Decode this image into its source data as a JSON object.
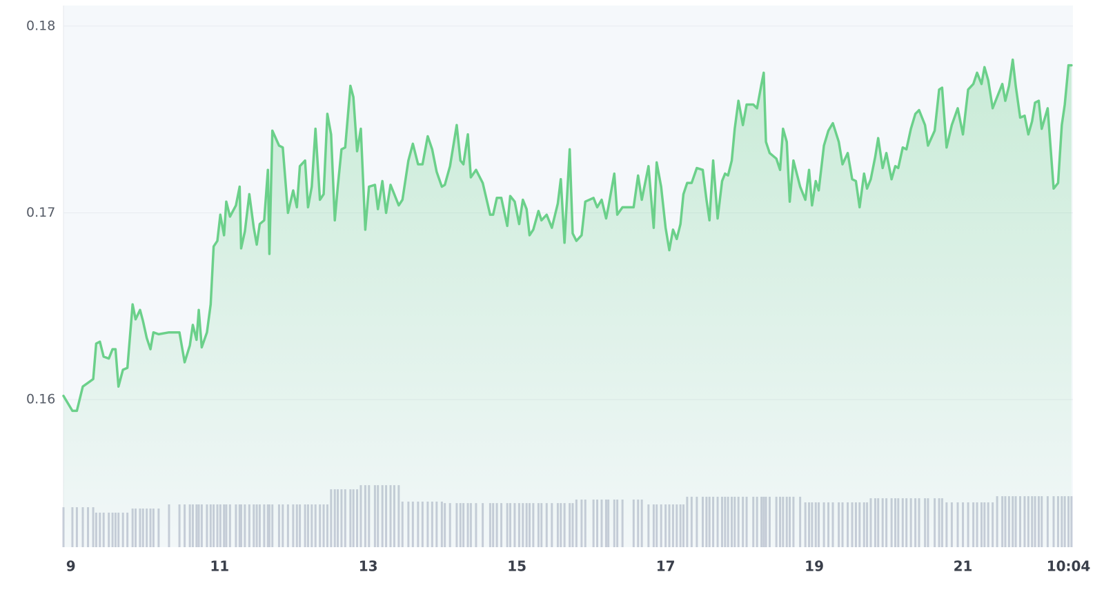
{
  "chart_data": {
    "type": "line",
    "xlim": [
      8.9,
      22.48
    ],
    "xticks": [
      9,
      11,
      13,
      15,
      17,
      19,
      21,
      {
        "value": 22.42,
        "label": "10:04"
      }
    ],
    "ylim": [
      0.1521,
      0.1811
    ],
    "yticks": [
      0.16,
      0.17,
      0.18
    ],
    "grid": true,
    "x": [
      8.9,
      9.02,
      9.08,
      9.16,
      9.23,
      9.3,
      9.34,
      9.39,
      9.44,
      9.51,
      9.56,
      9.6,
      9.64,
      9.7,
      9.76,
      9.83,
      9.87,
      9.93,
      9.97,
      10.02,
      10.07,
      10.11,
      10.18,
      10.32,
      10.46,
      10.53,
      10.6,
      10.64,
      10.69,
      10.72,
      10.76,
      10.83,
      10.88,
      10.92,
      10.97,
      11.01,
      11.06,
      11.09,
      11.14,
      11.22,
      11.27,
      11.29,
      11.34,
      11.4,
      11.46,
      11.5,
      11.54,
      11.6,
      11.65,
      11.67,
      11.71,
      11.8,
      11.85,
      11.92,
      11.99,
      12.04,
      12.08,
      12.15,
      12.19,
      12.24,
      12.29,
      12.35,
      12.4,
      12.45,
      12.5,
      12.55,
      12.59,
      12.64,
      12.69,
      12.76,
      12.8,
      12.85,
      12.9,
      12.96,
      13.01,
      13.09,
      13.13,
      13.19,
      13.24,
      13.3,
      13.35,
      13.41,
      13.46,
      13.54,
      13.6,
      13.67,
      13.73,
      13.8,
      13.86,
      13.92,
      13.99,
      14.03,
      14.1,
      14.19,
      14.24,
      14.28,
      14.34,
      14.38,
      14.45,
      14.54,
      14.64,
      14.68,
      14.73,
      14.79,
      14.87,
      14.91,
      14.97,
      15.03,
      15.08,
      15.13,
      15.17,
      15.22,
      15.29,
      15.33,
      15.4,
      15.47,
      15.55,
      15.59,
      15.64,
      15.71,
      15.75,
      15.8,
      15.87,
      15.92,
      16.03,
      16.08,
      16.14,
      16.2,
      16.23,
      16.31,
      16.35,
      16.42,
      16.57,
      16.63,
      16.68,
      16.77,
      16.84,
      16.88,
      16.94,
      17.0,
      17.05,
      17.1,
      17.15,
      17.2,
      17.24,
      17.29,
      17.35,
      17.42,
      17.5,
      17.55,
      17.59,
      17.64,
      17.7,
      17.76,
      17.8,
      17.84,
      17.89,
      17.93,
      17.98,
      18.04,
      18.09,
      18.18,
      18.23,
      18.29,
      18.32,
      18.35,
      18.4,
      18.49,
      18.54,
      18.58,
      18.63,
      18.67,
      18.72,
      18.81,
      18.88,
      18.93,
      18.97,
      19.02,
      19.06,
      19.13,
      19.19,
      19.25,
      19.33,
      19.38,
      19.45,
      19.51,
      19.56,
      19.61,
      19.67,
      19.71,
      19.76,
      19.82,
      19.86,
      19.92,
      19.97,
      20.04,
      20.09,
      20.13,
      20.19,
      20.24,
      20.3,
      20.36,
      20.41,
      20.49,
      20.53,
      20.62,
      20.68,
      20.72,
      20.78,
      20.85,
      20.93,
      21.0,
      21.07,
      21.14,
      21.19,
      21.25,
      21.29,
      21.34,
      21.4,
      21.46,
      21.53,
      21.57,
      21.62,
      21.67,
      21.71,
      21.77,
      21.83,
      21.88,
      21.93,
      21.97,
      22.02,
      22.06,
      22.14,
      22.22,
      22.28,
      22.33,
      22.37,
      22.42,
      22.46
    ],
    "series": [
      {
        "color": "#6bd08a",
        "values": [
          0.1602,
          0.1594,
          0.1594,
          0.1607,
          0.1609,
          0.1611,
          0.163,
          0.1631,
          0.1623,
          0.1622,
          0.1627,
          0.1627,
          0.1607,
          0.1616,
          0.1617,
          0.1651,
          0.1643,
          0.1648,
          0.1642,
          0.1633,
          0.1627,
          0.1636,
          0.1635,
          0.1636,
          0.1636,
          0.162,
          0.1629,
          0.164,
          0.1632,
          0.1648,
          0.1628,
          0.1636,
          0.1651,
          0.1682,
          0.1685,
          0.1699,
          0.1688,
          0.1706,
          0.1698,
          0.1704,
          0.1714,
          0.1681,
          0.169,
          0.171,
          0.1692,
          0.1683,
          0.1694,
          0.1696,
          0.1723,
          0.1678,
          0.1744,
          0.1736,
          0.1735,
          0.17,
          0.1712,
          0.1703,
          0.1725,
          0.1728,
          0.1703,
          0.1714,
          0.1745,
          0.1707,
          0.171,
          0.1753,
          0.1742,
          0.1696,
          0.1714,
          0.1734,
          0.1735,
          0.1768,
          0.1762,
          0.1733,
          0.1745,
          0.1691,
          0.1714,
          0.1715,
          0.1702,
          0.1717,
          0.17,
          0.1715,
          0.171,
          0.1704,
          0.1707,
          0.1728,
          0.1737,
          0.1726,
          0.1726,
          0.1741,
          0.1734,
          0.1722,
          0.1714,
          0.1715,
          0.1725,
          0.1747,
          0.1728,
          0.1726,
          0.1742,
          0.1719,
          0.1723,
          0.1716,
          0.1699,
          0.1699,
          0.1708,
          0.1708,
          0.1693,
          0.1709,
          0.1706,
          0.1694,
          0.1707,
          0.1702,
          0.1688,
          0.1691,
          0.1701,
          0.1696,
          0.1699,
          0.1692,
          0.1705,
          0.1718,
          0.1684,
          0.1734,
          0.1689,
          0.1685,
          0.1688,
          0.1706,
          0.1708,
          0.1703,
          0.1707,
          0.1697,
          0.1703,
          0.1721,
          0.1699,
          0.1703,
          0.1703,
          0.172,
          0.1707,
          0.1725,
          0.1692,
          0.1727,
          0.1714,
          0.1692,
          0.168,
          0.1691,
          0.1686,
          0.1694,
          0.171,
          0.1716,
          0.1716,
          0.1724,
          0.1723,
          0.1707,
          0.1696,
          0.1728,
          0.1697,
          0.1717,
          0.1721,
          0.172,
          0.1728,
          0.1745,
          0.176,
          0.1747,
          0.1758,
          0.1758,
          0.1756,
          0.1769,
          0.1775,
          0.1738,
          0.1732,
          0.1729,
          0.1723,
          0.1745,
          0.1738,
          0.1706,
          0.1728,
          0.1714,
          0.1707,
          0.1723,
          0.1704,
          0.1717,
          0.1712,
          0.1736,
          0.1744,
          0.1748,
          0.1738,
          0.1726,
          0.1732,
          0.1718,
          0.1717,
          0.1703,
          0.1721,
          0.1713,
          0.1718,
          0.173,
          0.174,
          0.1724,
          0.1732,
          0.1718,
          0.1725,
          0.1724,
          0.1735,
          0.1734,
          0.1745,
          0.1753,
          0.1755,
          0.1747,
          0.1736,
          0.1744,
          0.1766,
          0.1767,
          0.1735,
          0.1747,
          0.1756,
          0.1742,
          0.1766,
          0.1769,
          0.1775,
          0.1769,
          0.1778,
          0.1771,
          0.1756,
          0.1762,
          0.1769,
          0.176,
          0.1768,
          0.1782,
          0.1768,
          0.1751,
          0.1752,
          0.1742,
          0.1749,
          0.1759,
          0.176,
          0.1745,
          0.1756,
          0.1713,
          0.1716,
          0.1747,
          0.1758,
          0.1779,
          0.1779
        ]
      },
      {
        "type": "bar",
        "color": "#c7ccd9",
        "values": [
          0.15424,
          0.15424,
          0.15424,
          0.15424,
          0.15424,
          0.15424,
          0.15395,
          0.15395,
          0.15395,
          0.15395,
          0.15395,
          0.15395,
          0.15395,
          0.15395,
          0.15395,
          0.15417,
          0.15417,
          0.15417,
          0.15417,
          0.15417,
          0.15417,
          0.15417,
          0.15417,
          0.15439,
          0.15439,
          0.15439,
          0.15439,
          0.15439,
          0.15439,
          0.15439,
          0.15439,
          0.15439,
          0.15439,
          0.15439,
          0.15439,
          0.15439,
          0.15439,
          0.15439,
          0.15439,
          0.15439,
          0.15439,
          0.15439,
          0.15439,
          0.15439,
          0.15439,
          0.15439,
          0.15439,
          0.15439,
          0.15439,
          0.15439,
          0.15439,
          0.15439,
          0.15439,
          0.15439,
          0.15439,
          0.15439,
          0.15439,
          0.15439,
          0.15439,
          0.15439,
          0.15439,
          0.15439,
          0.15439,
          0.15439,
          0.1552,
          0.1552,
          0.1552,
          0.1552,
          0.1552,
          0.1552,
          0.1552,
          0.1552,
          0.15542,
          0.15542,
          0.15542,
          0.15542,
          0.15542,
          0.15542,
          0.15542,
          0.15542,
          0.15542,
          0.15542,
          0.15454,
          0.15454,
          0.15454,
          0.15454,
          0.15454,
          0.15454,
          0.15454,
          0.15454,
          0.15454,
          0.15446,
          0.15446,
          0.15446,
          0.15446,
          0.15446,
          0.15446,
          0.15446,
          0.15446,
          0.15446,
          0.15446,
          0.15446,
          0.15446,
          0.15446,
          0.15446,
          0.15446,
          0.15446,
          0.15446,
          0.15446,
          0.15446,
          0.15446,
          0.15446,
          0.15446,
          0.15446,
          0.15446,
          0.15446,
          0.15446,
          0.15446,
          0.15446,
          0.15446,
          0.15446,
          0.15465,
          0.15465,
          0.15465,
          0.15465,
          0.15465,
          0.15465,
          0.15465,
          0.15465,
          0.15465,
          0.15465,
          0.15465,
          0.15465,
          0.15465,
          0.15465,
          0.15439,
          0.15439,
          0.15439,
          0.15439,
          0.15439,
          0.15439,
          0.15439,
          0.15439,
          0.15439,
          0.15439,
          0.1548,
          0.1548,
          0.1548,
          0.1548,
          0.1548,
          0.1548,
          0.1548,
          0.1548,
          0.1548,
          0.1548,
          0.1548,
          0.1548,
          0.1548,
          0.1548,
          0.1548,
          0.1548,
          0.1548,
          0.1548,
          0.1548,
          0.1548,
          0.1548,
          0.1548,
          0.1548,
          0.1548,
          0.1548,
          0.1548,
          0.1548,
          0.1548,
          0.1548,
          0.1545,
          0.1545,
          0.1545,
          0.1545,
          0.1545,
          0.1545,
          0.1545,
          0.1545,
          0.1545,
          0.1545,
          0.1545,
          0.1545,
          0.1545,
          0.1545,
          0.1545,
          0.1545,
          0.15472,
          0.15472,
          0.15472,
          0.15472,
          0.15472,
          0.15472,
          0.15472,
          0.15472,
          0.15472,
          0.15472,
          0.15472,
          0.15472,
          0.15472,
          0.15472,
          0.15472,
          0.15472,
          0.15472,
          0.15472,
          0.1545,
          0.1545,
          0.1545,
          0.1545,
          0.1545,
          0.1545,
          0.1545,
          0.1545,
          0.1545,
          0.1545,
          0.1545,
          0.15483,
          0.15483,
          0.15483,
          0.15483,
          0.15483,
          0.15483,
          0.15483,
          0.15483,
          0.15483,
          0.15483,
          0.15483,
          0.15483,
          0.15483,
          0.15483,
          0.15483,
          0.15483,
          0.15483,
          0.15483,
          0.15483,
          0.15483
        ]
      }
    ]
  }
}
